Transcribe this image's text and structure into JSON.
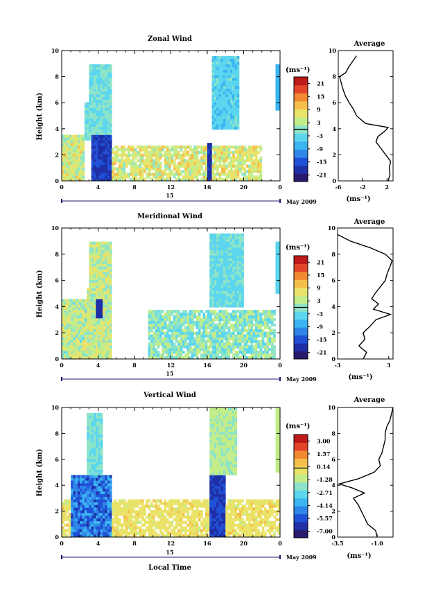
{
  "figure": {
    "xlabel_bottom": "Local Time",
    "date_label": "May 2009",
    "day_label": "15",
    "colorbar_unit": "(ms⁻¹)",
    "average_title": "Average",
    "average_xlabel": "(ms⁻¹)",
    "ylabel": "Height (km)"
  },
  "colors": {
    "scale": [
      "#2a1a6e",
      "#1f2fa6",
      "#2050d6",
      "#2f86e8",
      "#3bb5f2",
      "#5cd6ee",
      "#8de4c8",
      "#c3ec8a",
      "#eae36a",
      "#f6bf4a",
      "#f28a32",
      "#e2452a",
      "#bf1a1a"
    ]
  },
  "chart_data": [
    {
      "type": "heatmap",
      "title": "Zonal Wind",
      "ylabel": "Height (km)",
      "x_ticks": [
        "0",
        "4",
        "8",
        "12",
        "16",
        "20",
        "0"
      ],
      "y_ticks": [
        "0",
        "2",
        "4",
        "6",
        "8",
        "10"
      ],
      "xlim": [
        0,
        24
      ],
      "ylim": [
        0,
        10
      ],
      "colorbar_ticks": [
        "21",
        "15",
        "9",
        "3",
        "-3",
        "-9",
        "-15",
        "-21"
      ],
      "colorbar_range": [
        -24,
        24
      ],
      "average": {
        "title": "Average",
        "x_ticks": [
          "-6",
          "-2",
          "2"
        ],
        "xlim": [
          -6,
          3
        ],
        "y_ticks": [
          "0",
          "2",
          "4",
          "6",
          "8",
          "10"
        ],
        "profile": [
          {
            "h": 0.0,
            "v": 2.2
          },
          {
            "h": 0.5,
            "v": 2.5
          },
          {
            "h": 1.0,
            "v": 2.4
          },
          {
            "h": 1.5,
            "v": 2.6
          },
          {
            "h": 2.0,
            "v": 1.8
          },
          {
            "h": 2.5,
            "v": 1.0
          },
          {
            "h": 3.0,
            "v": 0.2
          },
          {
            "h": 3.4,
            "v": 0.5
          },
          {
            "h": 3.8,
            "v": 1.6
          },
          {
            "h": 4.1,
            "v": 2.2
          },
          {
            "h": 4.4,
            "v": -1.5
          },
          {
            "h": 5.0,
            "v": -3.0
          },
          {
            "h": 5.5,
            "v": -3.5
          },
          {
            "h": 6.0,
            "v": -4.2
          },
          {
            "h": 6.5,
            "v": -4.8
          },
          {
            "h": 7.0,
            "v": -5.2
          },
          {
            "h": 7.5,
            "v": -5.5
          },
          {
            "h": 8.0,
            "v": -5.8
          },
          {
            "h": 8.3,
            "v": -4.8
          },
          {
            "h": 8.8,
            "v": -4.2
          },
          {
            "h": 9.2,
            "v": -3.6
          },
          {
            "h": 9.6,
            "v": -3.0
          }
        ]
      }
    },
    {
      "type": "heatmap",
      "title": "Meridional Wind",
      "ylabel": "Height (km)",
      "x_ticks": [
        "0",
        "4",
        "8",
        "12",
        "16",
        "20",
        "0"
      ],
      "y_ticks": [
        "0",
        "2",
        "4",
        "6",
        "8",
        "10"
      ],
      "xlim": [
        0,
        24
      ],
      "ylim": [
        0,
        10
      ],
      "colorbar_ticks": [
        "21",
        "15",
        "9",
        "3",
        "-3",
        "-9",
        "-15",
        "-21"
      ],
      "colorbar_range": [
        -24,
        24
      ],
      "average": {
        "title": "Average",
        "x_ticks": [
          "-3",
          "3"
        ],
        "xlim": [
          -3,
          3.5
        ],
        "y_ticks": [
          "0",
          "2",
          "4",
          "6",
          "8",
          "10"
        ],
        "profile": [
          {
            "h": 0.0,
            "v": 0.0
          },
          {
            "h": 0.5,
            "v": 0.4
          },
          {
            "h": 1.0,
            "v": -0.5
          },
          {
            "h": 1.5,
            "v": 0.2
          },
          {
            "h": 2.0,
            "v": 0.0
          },
          {
            "h": 2.5,
            "v": 0.8
          },
          {
            "h": 3.0,
            "v": 1.5
          },
          {
            "h": 3.4,
            "v": 3.2
          },
          {
            "h": 3.8,
            "v": 1.2
          },
          {
            "h": 4.2,
            "v": 1.8
          },
          {
            "h": 4.6,
            "v": 1.0
          },
          {
            "h": 5.0,
            "v": 1.4
          },
          {
            "h": 5.5,
            "v": 2.0
          },
          {
            "h": 6.0,
            "v": 2.6
          },
          {
            "h": 6.5,
            "v": 2.8
          },
          {
            "h": 7.0,
            "v": 3.1
          },
          {
            "h": 7.5,
            "v": 3.4
          },
          {
            "h": 8.0,
            "v": 2.6
          },
          {
            "h": 8.5,
            "v": 0.8
          },
          {
            "h": 9.0,
            "v": -1.5
          },
          {
            "h": 9.5,
            "v": -3.0
          }
        ]
      }
    },
    {
      "type": "heatmap",
      "title": "Vertical Wind",
      "ylabel": "Height (km)",
      "xlabel": "Local Time",
      "x_ticks": [
        "0",
        "4",
        "8",
        "12",
        "16",
        "20",
        "0"
      ],
      "y_ticks": [
        "0",
        "2",
        "4",
        "6",
        "8",
        "10"
      ],
      "xlim": [
        0,
        24
      ],
      "ylim": [
        0,
        10
      ],
      "colorbar_ticks": [
        "3.00",
        "1.57",
        "0.14",
        "-1.28",
        "-2.71",
        "-4.14",
        "-5.57",
        "-7.00"
      ],
      "colorbar_range": [
        -7.7,
        3.7
      ],
      "average": {
        "title": "Average",
        "x_ticks": [
          "-3.5",
          "-1.0"
        ],
        "xlim": [
          -3.5,
          0.0
        ],
        "y_ticks": [
          "0",
          "2",
          "4",
          "6",
          "8",
          "10"
        ],
        "profile": [
          {
            "h": 0.0,
            "v": -1.0
          },
          {
            "h": 0.5,
            "v": -1.1
          },
          {
            "h": 1.0,
            "v": -1.6
          },
          {
            "h": 1.5,
            "v": -1.8
          },
          {
            "h": 2.0,
            "v": -2.0
          },
          {
            "h": 2.5,
            "v": -2.2
          },
          {
            "h": 3.0,
            "v": -2.5
          },
          {
            "h": 3.4,
            "v": -1.8
          },
          {
            "h": 3.8,
            "v": -2.6
          },
          {
            "h": 4.1,
            "v": -3.4
          },
          {
            "h": 4.5,
            "v": -2.2
          },
          {
            "h": 5.0,
            "v": -1.2
          },
          {
            "h": 5.5,
            "v": -0.8
          },
          {
            "h": 6.0,
            "v": -0.9
          },
          {
            "h": 6.5,
            "v": -0.7
          },
          {
            "h": 7.0,
            "v": -0.6
          },
          {
            "h": 7.5,
            "v": -0.5
          },
          {
            "h": 8.0,
            "v": -0.5
          },
          {
            "h": 8.5,
            "v": -0.4
          },
          {
            "h": 9.0,
            "v": -0.2
          },
          {
            "h": 9.5,
            "v": -0.1
          },
          {
            "h": 10.0,
            "v": 0.0
          }
        ]
      }
    }
  ]
}
